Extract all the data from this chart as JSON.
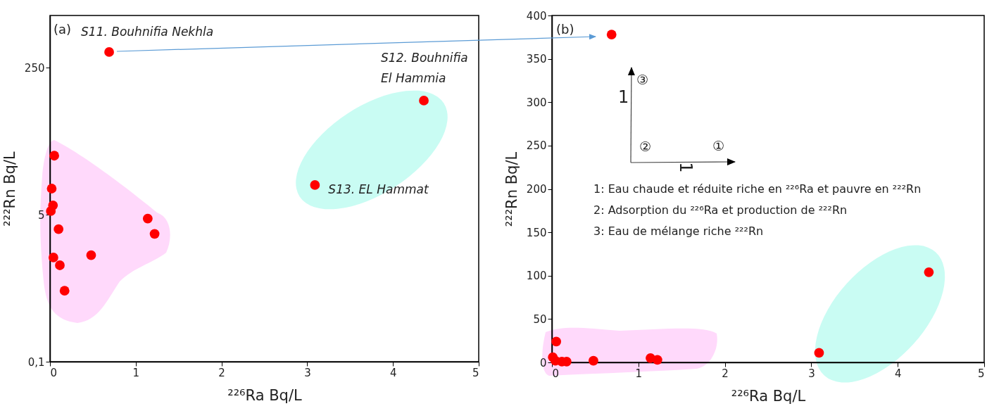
{
  "chart_data": [
    {
      "type": "scatter",
      "xlabel": "²²⁶Ra Bq/L",
      "ylabel": "²²²Rn Bq/L",
      "log": "y",
      "grid": false,
      "marker": "circle",
      "xlim": [
        0,
        5
      ],
      "xticks": [
        0,
        1,
        2,
        3,
        4,
        5
      ],
      "ylim": [
        0.1,
        1000
      ],
      "yticks": [
        {
          "value": 0.1,
          "label": "0,1"
        },
        5,
        250
      ],
      "x": [
        0.05,
        0.02,
        0.035,
        0.01,
        0.1,
        1.14,
        1.22,
        0.48,
        0.04,
        0.115,
        0.17,
        0.69,
        4.36,
        3.09
      ],
      "series": [
        {
          "color": "#ff0000",
          "values": [
            24,
            10,
            6.4,
            5.5,
            3.4,
            4.5,
            3.0,
            1.7,
            1.6,
            1.3,
            0.66,
            378,
            104,
            11
          ]
        }
      ],
      "annotations": [
        "(a)",
        {
          "text": "S11. Bouhnifia Nekhla",
          "x": 0.69,
          "y": 378
        },
        {
          "text": "S12. Bouhnifia\n El Hammia",
          "x": 4.36,
          "y": 104
        },
        {
          "text": "S13. EL Hammat",
          "x": 3.09,
          "y": 11
        }
      ]
    },
    {
      "type": "scatter",
      "xlabel": "²²⁶Ra Bq/L",
      "ylabel": "²²²Rn Bq/L",
      "grid": false,
      "marker": "circle",
      "xlim": [
        0,
        5
      ],
      "xticks": [
        0,
        1,
        2,
        3,
        4,
        5
      ],
      "ylim": [
        0,
        400
      ],
      "yticks": [
        0,
        50,
        100,
        150,
        200,
        250,
        300,
        350,
        400
      ],
      "x": [
        0.05,
        null,
        null,
        0.01,
        null,
        1.14,
        1.22,
        0.48,
        0.04,
        0.115,
        0.17,
        0.69,
        4.36,
        3.09
      ],
      "series": [
        {
          "color": "#ff0000",
          "values": [
            24,
            null,
            null,
            6,
            null,
            5,
            3,
            2,
            2,
            1,
            1,
            378,
            104,
            11
          ]
        }
      ],
      "annotations": [
        "(b)",
        "③",
        "1",
        "②",
        "①",
        "1",
        "1: Eau chaude et réduite riche en ²²⁶Ra et pauvre en ²²²Rn",
        "2: Adsorption du ²²⁶Ra et production de ²²²Rn",
        "3: Eau de mélange riche ²²²Rn"
      ]
    }
  ]
}
